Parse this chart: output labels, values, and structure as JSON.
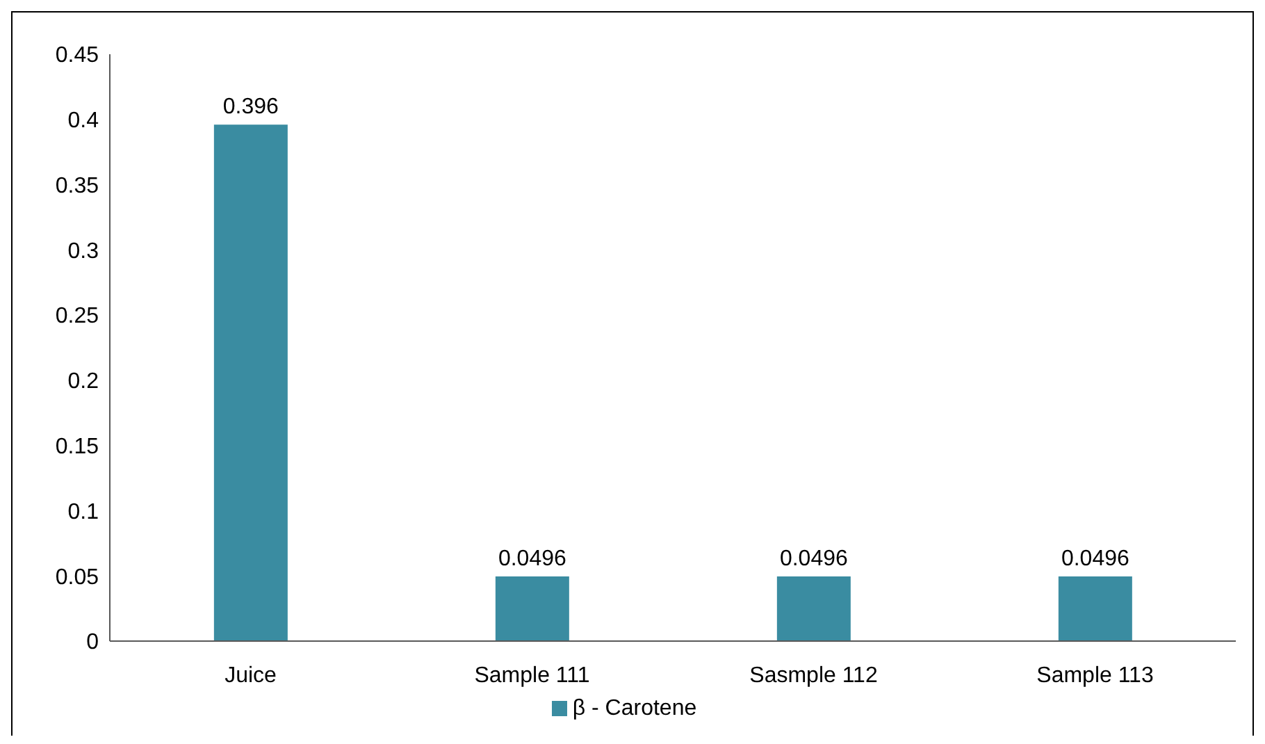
{
  "chart_data": {
    "type": "bar",
    "categories": [
      "Juice",
      "Sample 111",
      "Sasmple 112",
      "Sample 113"
    ],
    "series": [
      {
        "name": "β - Carotene",
        "color": "#3a8ca1",
        "values": [
          0.396,
          0.0496,
          0.0496,
          0.0496
        ]
      }
    ],
    "ylim": [
      0,
      0.45
    ],
    "yticks": [
      0,
      0.05,
      0.1,
      0.15,
      0.2,
      0.25,
      0.3,
      0.35,
      0.4,
      0.45
    ],
    "data_labels": true,
    "grid": false,
    "legend": "bottom"
  }
}
